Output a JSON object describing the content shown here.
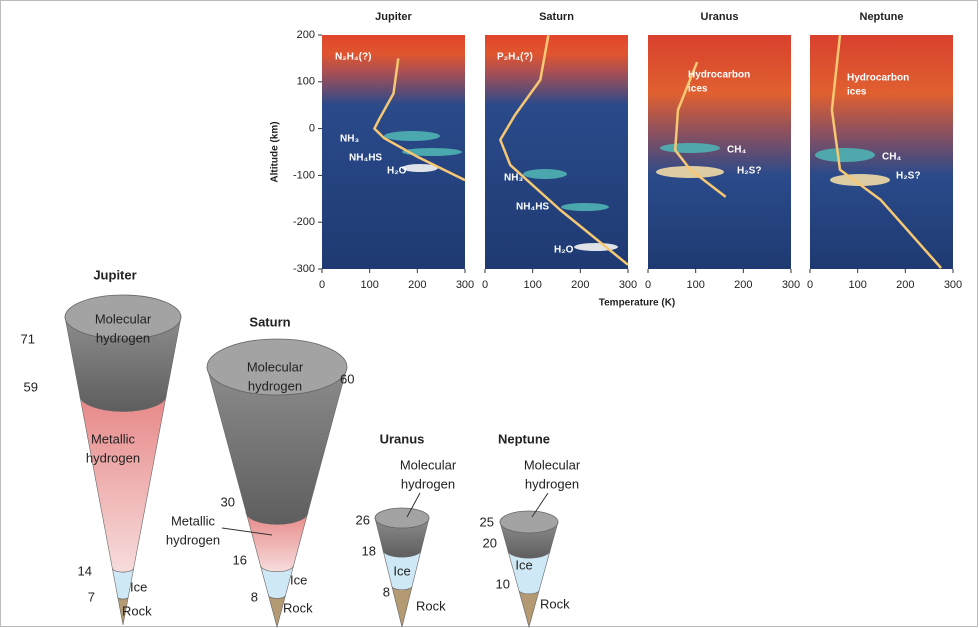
{
  "chart_data": [
    {
      "type": "line",
      "title": "Jupiter",
      "x": [
        160,
        150,
        120,
        110,
        130,
        200,
        300
      ],
      "series": [
        {
          "values": [
            150,
            75,
            20,
            0,
            -20,
            -60,
            -110
          ],
          "color": "#f6c873"
        }
      ],
      "xlim": [
        0,
        300
      ],
      "xticks": [
        0,
        100,
        200,
        300
      ],
      "ylim": [
        -300,
        200
      ],
      "yticks": [
        200,
        100,
        0,
        -100,
        -200,
        -300
      ],
      "annotations": [
        "N₂H₄(?)",
        "NH₃",
        "NH₄HS",
        "H₂O"
      ]
    },
    {
      "type": "line",
      "title": "Saturn",
      "x": [
        133,
        116,
        63,
        32,
        53,
        158,
        300
      ],
      "series": [
        {
          "values": [
            200,
            104,
            29,
            -24,
            -78,
            -174,
            -291
          ],
          "color": "#f6c873"
        }
      ],
      "xlim": [
        0,
        300
      ],
      "xticks": [
        0,
        100,
        200,
        300
      ],
      "ylim": [
        -300,
        200
      ],
      "annotations": [
        "P₂H₄(?)",
        "NH₃",
        "NH₄HS",
        "H₂O"
      ]
    },
    {
      "type": "line",
      "title": "Uranus",
      "x": [
        103,
        63,
        57,
        89,
        163
      ],
      "series": [
        {
          "values": [
            142,
            40,
            -46,
            -88,
            -146
          ],
          "color": "#f6c873"
        }
      ],
      "xlim": [
        0,
        300
      ],
      "xticks": [
        0,
        100,
        200,
        300
      ],
      "ylim": [
        -300,
        200
      ],
      "annotations": [
        [
          "Hydrocarbon",
          "ices"
        ],
        "CH₄",
        "H₂S?"
      ]
    },
    {
      "type": "line",
      "title": "Neptune",
      "x": [
        63,
        46,
        63,
        148,
        275
      ],
      "series": [
        {
          "values": [
            200,
            40,
            -88,
            -152,
            -298
          ],
          "color": "#f6c873"
        }
      ],
      "xlim": [
        0,
        300
      ],
      "xticks": [
        0,
        100,
        200,
        300
      ],
      "ylim": [
        -300,
        200
      ],
      "annotations": [
        [
          "Hydrocarbon",
          "ices"
        ],
        "CH₄",
        "H₂S?"
      ]
    }
  ],
  "axis_labels": {
    "x": "Temperature (K)",
    "y": "Altitude (km)"
  },
  "cones": [
    {
      "name": "Jupiter",
      "layers": [
        [
          "Molecular",
          "hydrogen"
        ],
        [
          "Metallic",
          "hydrogen"
        ],
        [
          "Ice"
        ],
        [
          "Rock"
        ]
      ],
      "radii": [
        "71",
        "59",
        "14",
        "7"
      ]
    },
    {
      "name": "Saturn",
      "layers": [
        [
          "Molecular",
          "hydrogen"
        ],
        [
          "Metallic",
          "hydrogen"
        ],
        [
          "Ice"
        ],
        [
          "Rock"
        ]
      ],
      "radii": [
        "60",
        "30",
        "16",
        "8"
      ]
    },
    {
      "name": "Uranus",
      "layers": [
        [
          "Molecular",
          "hydrogen"
        ],
        [
          "Ice"
        ],
        [
          "Rock"
        ]
      ],
      "radii": [
        "26",
        "18",
        "8"
      ]
    },
    {
      "name": "Neptune",
      "layers": [
        [
          "Molecular",
          "hydrogen"
        ],
        [
          "Ice"
        ],
        [
          "Rock"
        ]
      ],
      "radii": [
        "25",
        "20",
        "10"
      ]
    }
  ]
}
